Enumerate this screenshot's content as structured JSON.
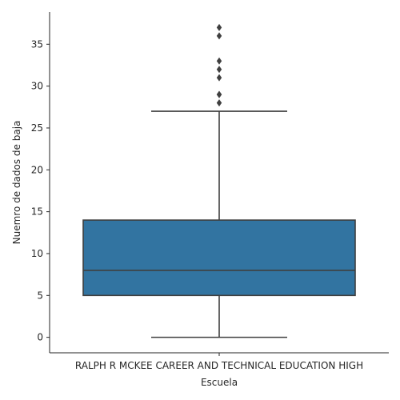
{
  "chart_data": {
    "type": "box",
    "xlabel": "Escuela",
    "ylabel": "Nuemro de dados de baja",
    "categories": [
      "RALPH R MCKEE CAREER AND TECHNICAL EDUCATION HIGH"
    ],
    "yticks": [
      0,
      5,
      10,
      15,
      20,
      25,
      30,
      35
    ],
    "ylim": [
      -1.85,
      38.85
    ],
    "grid": false,
    "box": {
      "whisker_low": 0,
      "q1": 5,
      "median": 8,
      "q3": 14,
      "whisker_high": 27,
      "outliers": [
        28,
        29,
        29,
        31,
        32,
        33,
        36,
        37
      ]
    },
    "colors": {
      "box_fill": "#3274a1",
      "line": "#3f3f3f",
      "axis": "#262626"
    }
  }
}
